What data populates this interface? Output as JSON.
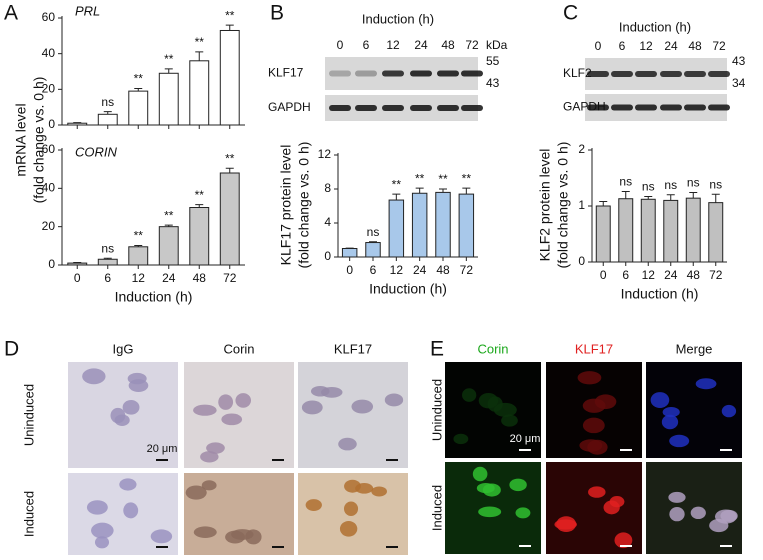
{
  "panel_labels": [
    "A",
    "B",
    "C",
    "D",
    "E"
  ],
  "chart_data": [
    {
      "type": "bar",
      "title": "PRL",
      "ylabel": [
        "mRNA level",
        "(fold change vs. 0 h)"
      ],
      "categories": [
        null,
        null,
        null,
        null,
        null,
        null
      ],
      "values": [
        1,
        6,
        19,
        29,
        36,
        53
      ],
      "errors": [
        0.3,
        1.5,
        1.5,
        2.5,
        5,
        3
      ],
      "significance": [
        null,
        "ns",
        "**",
        "**",
        "**",
        "**"
      ],
      "color": "#ffffff",
      "ylim": [
        0,
        60
      ],
      "yticks": [
        0,
        20,
        40,
        60
      ]
    },
    {
      "type": "bar",
      "title": "CORIN",
      "xlabel": "Induction (h)",
      "categories": [
        "0",
        "6",
        "12",
        "24",
        "48",
        "72"
      ],
      "values": [
        1,
        3,
        9.5,
        20,
        30,
        48
      ],
      "errors": [
        0.3,
        0.5,
        0.7,
        0.8,
        1.5,
        2.5
      ],
      "significance": [
        null,
        "ns",
        "**",
        "**",
        "**",
        "**"
      ],
      "color": "#c8c8c8",
      "ylim": [
        0,
        60
      ],
      "yticks": [
        0,
        20,
        40,
        60
      ]
    },
    {
      "type": "bar",
      "ylabel": [
        "KLF17 protein level",
        "(fold change vs. 0 h)"
      ],
      "xlabel": "Induction (h)",
      "categories": [
        "0",
        "6",
        "12",
        "24",
        "48",
        "72"
      ],
      "values": [
        1,
        1.7,
        6.7,
        7.5,
        7.6,
        7.4
      ],
      "errors": [
        0.05,
        0.1,
        0.7,
        0.6,
        0.4,
        0.7
      ],
      "significance": [
        null,
        "ns",
        "**",
        "**",
        "**",
        "**"
      ],
      "color": "#a8c8ea",
      "ylim": [
        0,
        12
      ],
      "yticks": [
        0,
        4,
        8,
        12
      ]
    },
    {
      "type": "bar",
      "ylabel": [
        "KLF2 protein level",
        "(fold change vs. 0 h)"
      ],
      "xlabel": "Induction (h)",
      "categories": [
        "0",
        "6",
        "12",
        "24",
        "48",
        "72"
      ],
      "values": [
        1,
        1.13,
        1.12,
        1.1,
        1.14,
        1.06
      ],
      "errors": [
        0.08,
        0.13,
        0.05,
        0.1,
        0.1,
        0.15
      ],
      "significance": [
        null,
        "ns",
        "ns",
        "ns",
        "ns",
        "ns"
      ],
      "color": "#c0c0c0",
      "ylim": [
        0,
        2
      ],
      "yticks": [
        0,
        1,
        2
      ]
    }
  ],
  "blots": [
    {
      "header": "Induction (h)",
      "lanes": [
        "0",
        "6",
        "12",
        "24",
        "48",
        "72"
      ],
      "unit": "kDa",
      "markers": [
        "55",
        "43"
      ],
      "proteins": [
        "KLF17",
        "GAPDH"
      ]
    },
    {
      "header": "Induction (h)",
      "lanes": [
        "0",
        "6",
        "12",
        "24",
        "48",
        "72"
      ],
      "markers": [
        "43",
        "34"
      ],
      "proteins": [
        "KLF2",
        "GAPDH"
      ]
    }
  ],
  "micrographs": [
    {
      "columns": [
        "IgG",
        "Corin",
        "KLF17"
      ],
      "rows": [
        "Uninduced",
        "Induced"
      ],
      "scale_bar": "20 μm"
    },
    {
      "columns": [
        "Corin",
        "KLF17",
        "Merge"
      ],
      "rows": [
        "Uninduced",
        "Induced"
      ],
      "scale_bar": "20 μm"
    }
  ]
}
